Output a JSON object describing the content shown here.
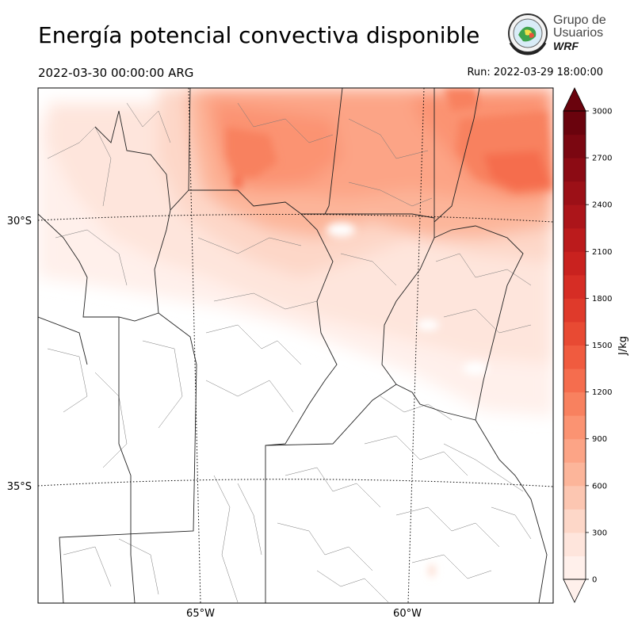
{
  "header": {
    "title": "Energía potencial convectiva disponible",
    "valid_time": "2022-03-30 00:00:00 ARG",
    "run_time": "Run: 2022-03-29 18:00:00"
  },
  "logo": {
    "line1": "Grupo de",
    "line2": "Usuarios",
    "line3": "WRF"
  },
  "map": {
    "lat_labels": [
      "30°S",
      "35°S"
    ],
    "lon_labels": [
      "65°W",
      "60°W"
    ],
    "gridlines": "dotted"
  },
  "colorbar": {
    "unit": "J/kg",
    "tick_labels": [
      "0",
      "300",
      "600",
      "900",
      "1200",
      "1500",
      "1800",
      "2100",
      "2400",
      "2700",
      "3000"
    ],
    "bins": [
      0,
      150,
      300,
      450,
      600,
      750,
      900,
      1050,
      1200,
      1350,
      1500,
      1650,
      1800,
      1950,
      2100,
      2250,
      2400,
      2550,
      2700,
      2850,
      3000
    ],
    "colors": [
      "#fff0eb",
      "#fee5dc",
      "#fdd7c8",
      "#fcc6b1",
      "#fcb59a",
      "#fca486",
      "#fb9372",
      "#f8815f",
      "#f56d4e",
      "#f05b3f",
      "#e84a33",
      "#df3a2b",
      "#d62d25",
      "#c9221f",
      "#bb1b1c",
      "#ac151a",
      "#9c1017",
      "#8c0b14",
      "#7b0711",
      "#6a030d"
    ],
    "extend": "both"
  }
}
